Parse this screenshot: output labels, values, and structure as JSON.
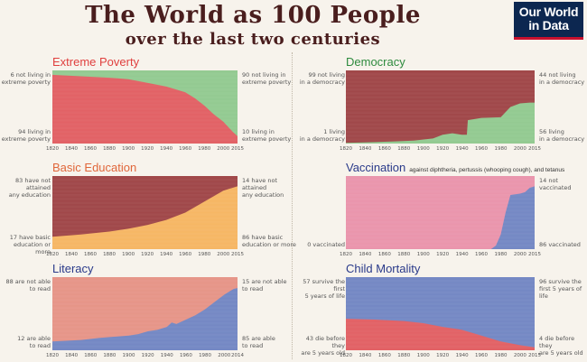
{
  "header": {
    "title": "The World as 100 People",
    "subtitle": "over the last two centuries",
    "logo_line1": "Our World",
    "logo_line2": "in Data"
  },
  "colors": {
    "red": "#e0575b",
    "green": "#8cc78a",
    "darkred": "#9a3b3d",
    "orange": "#f6b25a",
    "pink": "#e98ea7",
    "blue": "#6b80c0",
    "salmon": "#e58e80",
    "title_red": "#e0403f",
    "title_green": "#2e8b3e",
    "title_orange": "#e0663a",
    "title_navy": "#2a3a8a"
  },
  "chart_data": [
    {
      "type": "area",
      "title": "Extreme Poverty",
      "subtitle": "",
      "xlim": [
        1820,
        2015
      ],
      "ylim": [
        0,
        100
      ],
      "xticks": [
        "1820",
        "1840",
        "1860",
        "1880",
        "1900",
        "1920",
        "1940",
        "1960",
        "1980",
        "2000",
        "2015"
      ],
      "x": [
        1820,
        1850,
        1880,
        1900,
        1920,
        1940,
        1950,
        1960,
        1970,
        1980,
        1990,
        2000,
        2010,
        2015
      ],
      "series": [
        {
          "name": "not living in extreme poverty",
          "values": [
            6,
            8,
            10,
            12,
            17,
            22,
            26,
            30,
            38,
            48,
            60,
            70,
            84,
            90
          ]
        },
        {
          "name": "living in extreme poverty",
          "values": [
            94,
            92,
            90,
            88,
            83,
            78,
            74,
            70,
            62,
            52,
            40,
            30,
            16,
            10
          ]
        }
      ],
      "colors": [
        "#8cc78a",
        "#e0575b"
      ],
      "title_color": "#e0403f",
      "left_labels": [
        "6 not living in\nextreme poverty",
        "94 living in\nextreme poverty"
      ],
      "right_labels": [
        "90 not living in\nextreme poverty",
        "10 living in\nextreme poverty"
      ]
    },
    {
      "type": "area",
      "title": "Democracy",
      "subtitle": "",
      "xlim": [
        1820,
        2015
      ],
      "ylim": [
        0,
        100
      ],
      "xticks": [
        "1820",
        "1840",
        "1860",
        "1880",
        "1900",
        "1920",
        "1940",
        "1960",
        "1980",
        "2000",
        "2015"
      ],
      "x": [
        1820,
        1850,
        1870,
        1890,
        1910,
        1920,
        1930,
        1940,
        1945,
        1946,
        1960,
        1980,
        1990,
        2000,
        2010,
        2015
      ],
      "series": [
        {
          "name": "not living in a democracy",
          "values": [
            99,
            98,
            97,
            96,
            93,
            88,
            86,
            88,
            88,
            68,
            65,
            64,
            50,
            45,
            44,
            44
          ]
        },
        {
          "name": "living in a democracy",
          "values": [
            1,
            2,
            3,
            4,
            7,
            12,
            14,
            12,
            12,
            32,
            35,
            36,
            50,
            55,
            56,
            56
          ]
        }
      ],
      "colors": [
        "#9a3b3d",
        "#8cc78a"
      ],
      "title_color": "#2e8b3e",
      "left_labels": [
        "99 not living\nin a democracy",
        "1 living\nin a democracy"
      ],
      "right_labels": [
        "44 not living\nin a democracy",
        "56 living\nin a democracy"
      ]
    },
    {
      "type": "area",
      "title": "Basic Education",
      "subtitle": "",
      "xlim": [
        1820,
        2015
      ],
      "ylim": [
        0,
        100
      ],
      "xticks": [
        "1820",
        "1840",
        "1860",
        "1880",
        "1900",
        "1920",
        "1940",
        "1960",
        "1980",
        "2000",
        "2015"
      ],
      "x": [
        1820,
        1850,
        1880,
        1900,
        1920,
        1940,
        1960,
        1980,
        2000,
        2015
      ],
      "series": [
        {
          "name": "have not attained any education",
          "values": [
            83,
            80,
            76,
            72,
            67,
            60,
            50,
            35,
            20,
            14
          ]
        },
        {
          "name": "have basic education or more",
          "values": [
            17,
            20,
            24,
            28,
            33,
            40,
            50,
            65,
            80,
            86
          ]
        }
      ],
      "colors": [
        "#9a3b3d",
        "#f6b25a"
      ],
      "title_color": "#e0663a",
      "left_labels": [
        "83 have not attained\nany education",
        "17 have basic\neducation or more"
      ],
      "right_labels": [
        "14 have not attained\nany education",
        "86 have basic\neducation or more"
      ]
    },
    {
      "type": "area",
      "title": "Vaccination",
      "subtitle": "against diphtheria, pertussis (whooping cough), and tetanus",
      "xlim": [
        1820,
        2015
      ],
      "ylim": [
        0,
        100
      ],
      "xticks": [
        "1820",
        "1840",
        "1860",
        "1880",
        "1900",
        "1920",
        "1940",
        "1960",
        "1980",
        "2000",
        "2015"
      ],
      "x": [
        1820,
        1970,
        1975,
        1980,
        1985,
        1990,
        1995,
        2000,
        2005,
        2010,
        2015
      ],
      "series": [
        {
          "name": "not vaccinated",
          "values": [
            100,
            100,
            95,
            80,
            50,
            26,
            25,
            24,
            22,
            16,
            14
          ]
        },
        {
          "name": "vaccinated",
          "values": [
            0,
            0,
            5,
            20,
            50,
            74,
            75,
            76,
            78,
            84,
            86
          ]
        }
      ],
      "colors": [
        "#e98ea7",
        "#6b80c0"
      ],
      "title_color": "#2a3a8a",
      "left_labels": [
        "",
        "0 vaccinated"
      ],
      "right_labels": [
        "14 not vaccinated",
        "86 vaccinated"
      ]
    },
    {
      "type": "area",
      "title": "Literacy",
      "subtitle": "",
      "xlim": [
        1820,
        2014
      ],
      "ylim": [
        0,
        100
      ],
      "xticks": [
        "1820",
        "1840",
        "1860",
        "1880",
        "1900",
        "1920",
        "1940",
        "1960",
        "1980",
        "2000",
        "2014"
      ],
      "x": [
        1820,
        1850,
        1870,
        1900,
        1910,
        1920,
        1930,
        1940,
        1945,
        1950,
        1960,
        1970,
        1980,
        1990,
        2000,
        2010,
        2014
      ],
      "series": [
        {
          "name": "are not able to read",
          "values": [
            88,
            86,
            83,
            80,
            78,
            74,
            72,
            68,
            62,
            64,
            58,
            52,
            44,
            34,
            24,
            16,
            15
          ]
        },
        {
          "name": "are able to read",
          "values": [
            12,
            14,
            17,
            20,
            22,
            26,
            28,
            32,
            38,
            36,
            42,
            48,
            56,
            66,
            76,
            84,
            85
          ]
        }
      ],
      "colors": [
        "#e58e80",
        "#6b80c0"
      ],
      "title_color": "#2a3a8a",
      "left_labels": [
        "88 are not able\nto read",
        "12 are able\nto read"
      ],
      "right_labels": [
        "15 are not able\nto read",
        "85 are able\nto read"
      ]
    },
    {
      "type": "area",
      "title": "Child Mortality",
      "subtitle": "",
      "xlim": [
        1820,
        2015
      ],
      "ylim": [
        0,
        100
      ],
      "xticks": [
        "1820",
        "1840",
        "1860",
        "1880",
        "1900",
        "1920",
        "1940",
        "1960",
        "1980",
        "2000",
        "2015"
      ],
      "x": [
        1820,
        1850,
        1880,
        1900,
        1920,
        1940,
        1960,
        1980,
        2000,
        2015
      ],
      "series": [
        {
          "name": "survive the first 5 years of life",
          "values": [
            57,
            58,
            60,
            63,
            68,
            72,
            80,
            88,
            93,
            96
          ]
        },
        {
          "name": "die before they are 5 years old",
          "values": [
            43,
            42,
            40,
            37,
            32,
            28,
            20,
            12,
            7,
            4
          ]
        }
      ],
      "colors": [
        "#6b80c0",
        "#e0575b"
      ],
      "title_color": "#2a3a8a",
      "left_labels": [
        "57 survive the first\n5 years of life",
        "43 die before they\nare 5 years old"
      ],
      "right_labels": [
        "96 survive the\nfirst 5 years of life",
        "4 die before they\nare 5 years old"
      ]
    }
  ]
}
